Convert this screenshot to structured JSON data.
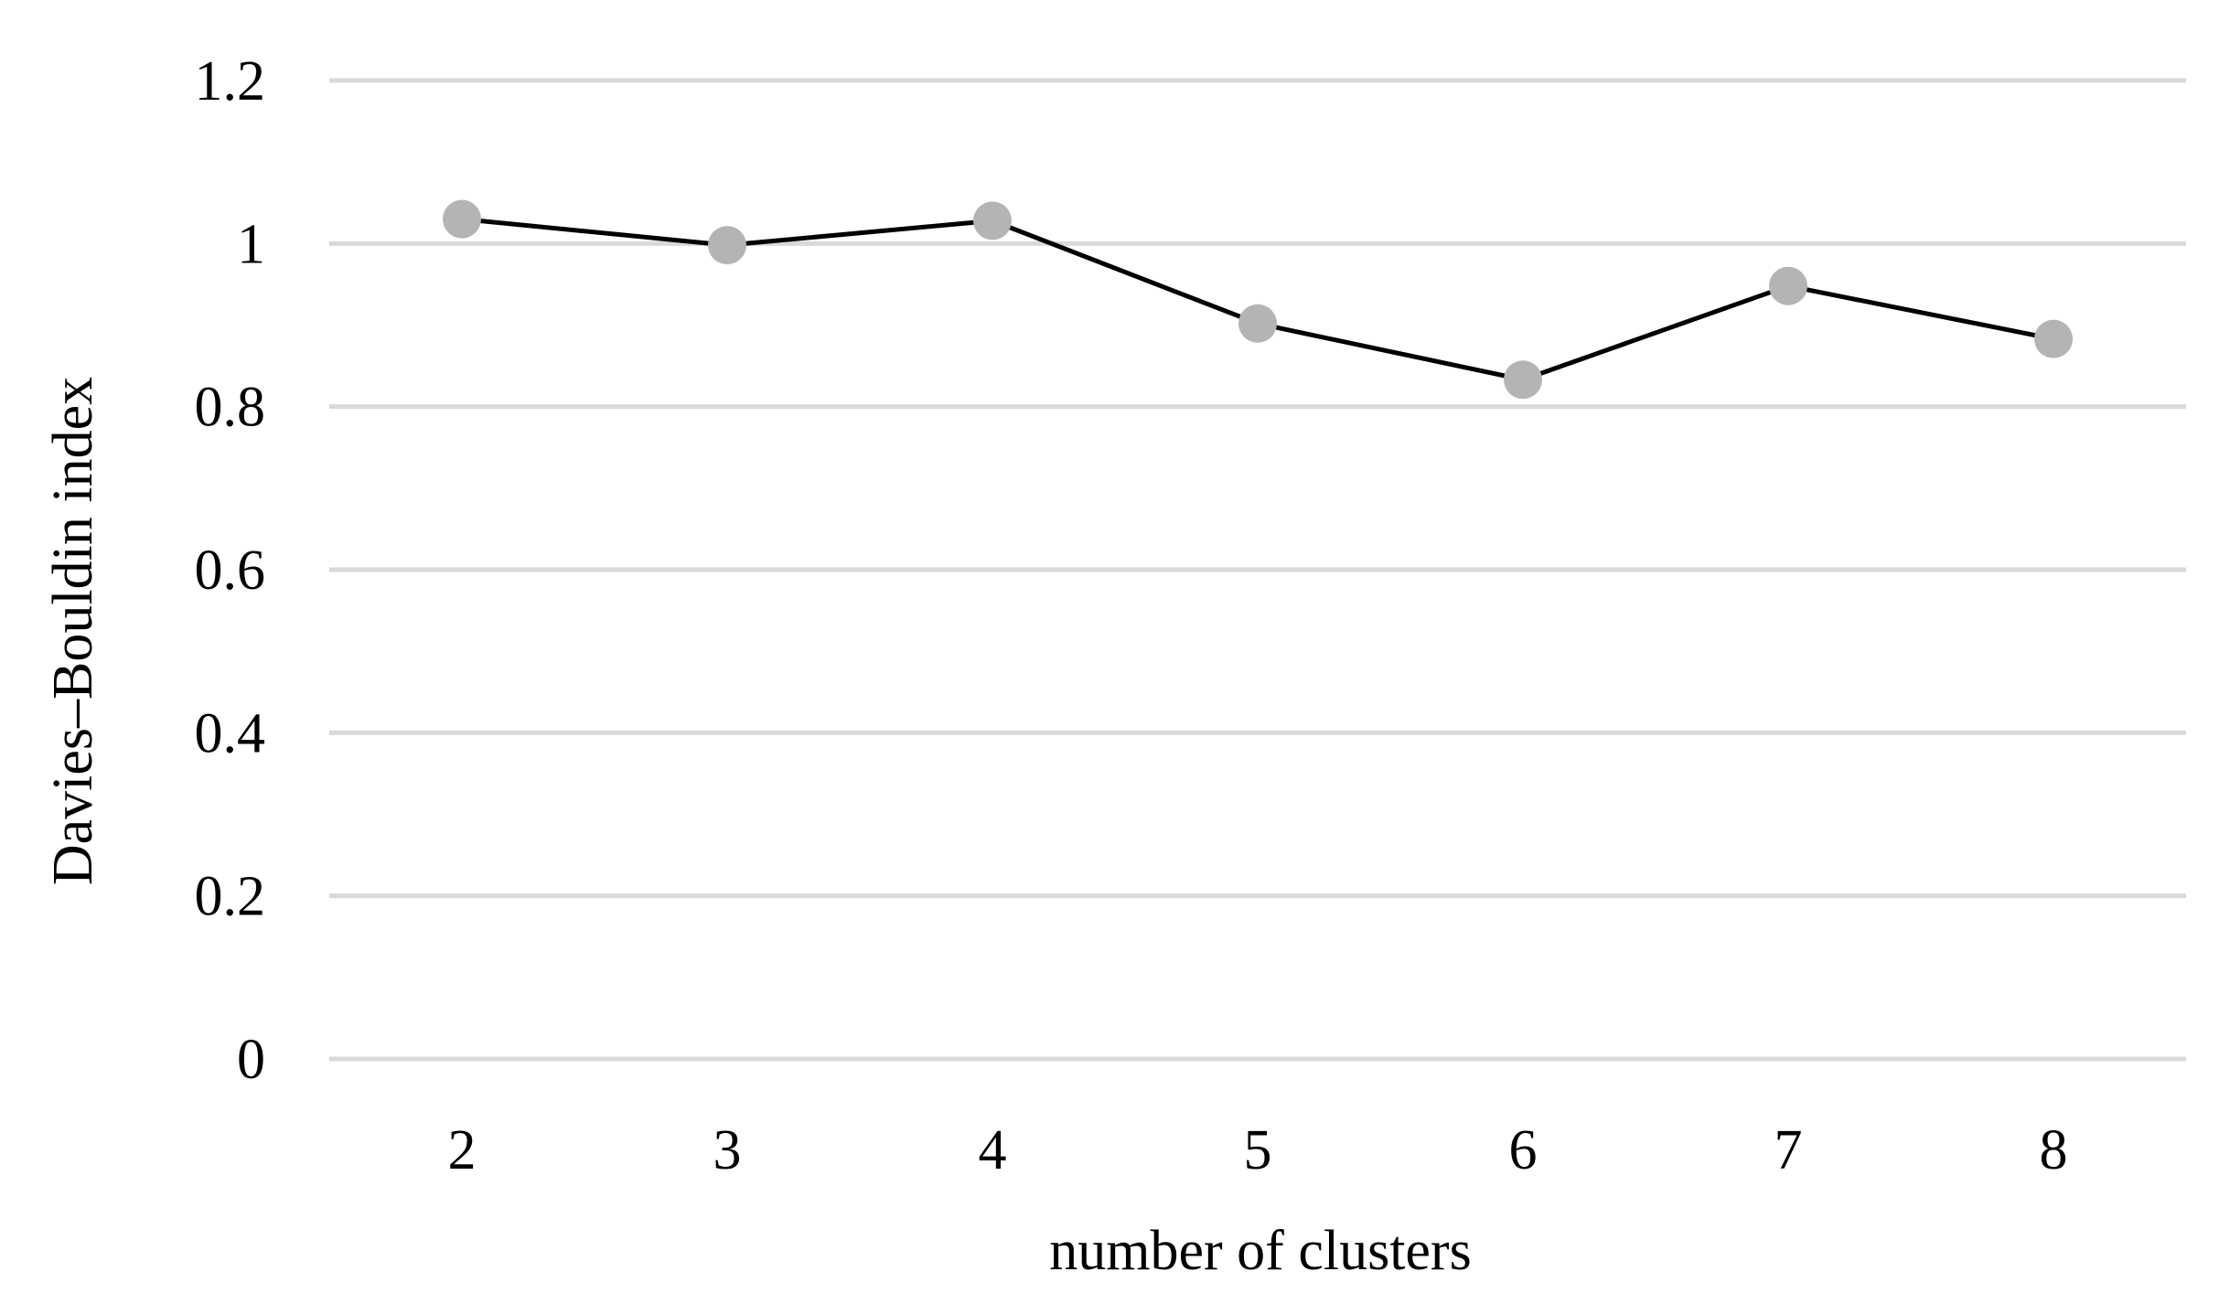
{
  "chart_data": {
    "type": "line",
    "title": "",
    "xlabel": "number of clusters",
    "ylabel": "Davies–Bouldin index",
    "categories": [
      "2",
      "3",
      "4",
      "5",
      "6",
      "7",
      "8"
    ],
    "series": [
      {
        "values": [
          1.03,
          0.998,
          1.028,
          0.902,
          0.833,
          0.948,
          0.883
        ],
        "line_color": "#000000",
        "marker_color": "#b4b4b4"
      }
    ],
    "ylim": [
      0,
      1.2
    ],
    "yticks": [
      "0",
      "0.2",
      "0.4",
      "0.6",
      "0.8",
      "1",
      "1.2"
    ],
    "grid": true,
    "legend": "none",
    "gridline_color": "#d9d9d9"
  }
}
